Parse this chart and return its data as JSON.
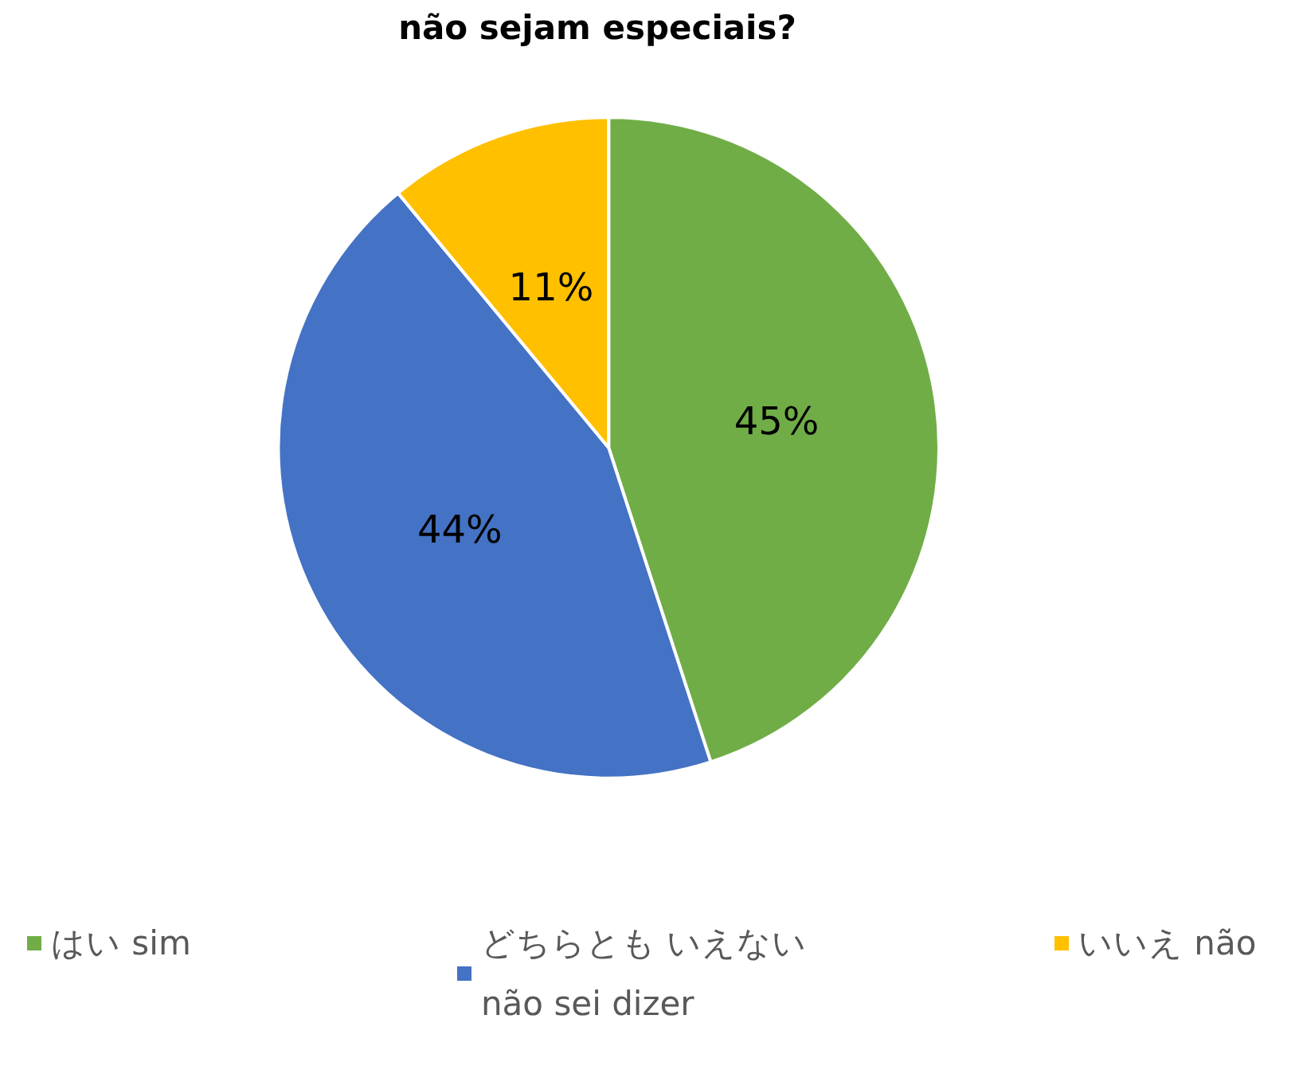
{
  "chart_data": {
    "type": "pie",
    "title": "não sejam especiais?",
    "categories": [
      "はい sim",
      "どちらとも いえない não sei dizer",
      "いいえ não"
    ],
    "values": [
      45,
      44,
      11
    ],
    "colors": [
      "#70ad47",
      "#4472c4",
      "#ffc000"
    ],
    "value_labels": [
      "45%",
      "44%",
      "11%"
    ],
    "legend": "bottom"
  }
}
